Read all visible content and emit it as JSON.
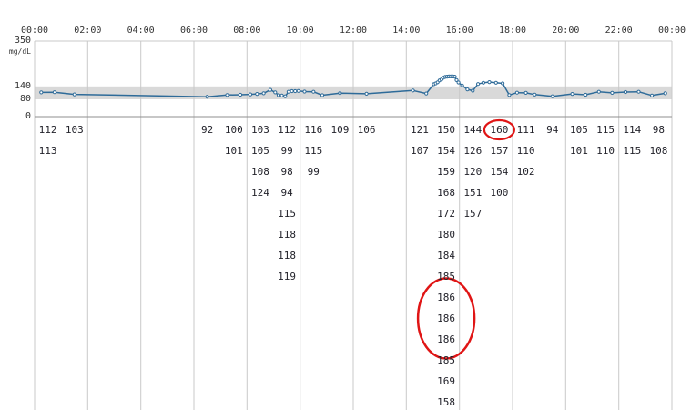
{
  "colors": {
    "line": "#2e6b99",
    "marker_fill": "#ffffff",
    "band": "#d9d9d9",
    "grid": "#c9c9c9",
    "axis": "#8f8f8f",
    "annotation": "#e01515",
    "axis_text": "#333333",
    "value_text": "#23232b"
  },
  "chart_data": {
    "type": "line",
    "title": "",
    "ylabel": "mg/dL",
    "ylim": [
      0,
      350
    ],
    "yticks": [
      350,
      140,
      80,
      0
    ],
    "target_band": [
      80,
      140
    ],
    "x_tick_labels": [
      "00:00",
      "02:00",
      "04:00",
      "06:00",
      "08:00",
      "10:00",
      "12:00",
      "14:00",
      "16:00",
      "18:00",
      "20:00",
      "22:00",
      "00:00"
    ],
    "grid": "vertical-2h",
    "legend": "none",
    "marker": "small-circle-white-fill",
    "readings_by_hour": [
      {
        "hour": 0,
        "values": [
          112,
          113
        ]
      },
      {
        "hour": 1,
        "values": [
          103
        ]
      },
      {
        "hour": 6,
        "values": [
          92
        ]
      },
      {
        "hour": 7,
        "values": [
          100,
          101
        ]
      },
      {
        "hour": 8,
        "values": [
          103,
          105,
          108,
          124
        ]
      },
      {
        "hour": 9,
        "values": [
          112,
          99,
          98,
          94,
          115,
          118,
          118,
          119
        ]
      },
      {
        "hour": 10,
        "values": [
          116,
          115,
          99
        ]
      },
      {
        "hour": 11,
        "values": [
          109
        ]
      },
      {
        "hour": 12,
        "values": [
          106
        ]
      },
      {
        "hour": 14,
        "values": [
          121,
          107
        ]
      },
      {
        "hour": 15,
        "values": [
          150,
          154,
          159,
          168,
          172,
          180,
          184,
          185,
          186,
          186,
          186,
          185,
          169,
          158
        ]
      },
      {
        "hour": 16,
        "values": [
          144,
          126,
          120,
          151,
          157
        ]
      },
      {
        "hour": 17,
        "values": [
          160,
          157,
          154,
          100
        ]
      },
      {
        "hour": 18,
        "values": [
          111,
          110,
          102
        ]
      },
      {
        "hour": 19,
        "values": [
          94
        ]
      },
      {
        "hour": 20,
        "values": [
          105,
          101
        ]
      },
      {
        "hour": 21,
        "values": [
          115,
          110
        ]
      },
      {
        "hour": 22,
        "values": [
          114,
          115
        ]
      },
      {
        "hour": 23,
        "values": [
          98,
          108
        ]
      }
    ]
  },
  "annotations": [
    {
      "shape": "ellipse",
      "hour": 15,
      "rows": [
        8,
        10
      ],
      "circled_values": [
        186,
        186,
        186
      ]
    },
    {
      "shape": "ellipse",
      "hour": 17,
      "rows": [
        0,
        0
      ],
      "circled_values": [
        160
      ]
    }
  ]
}
